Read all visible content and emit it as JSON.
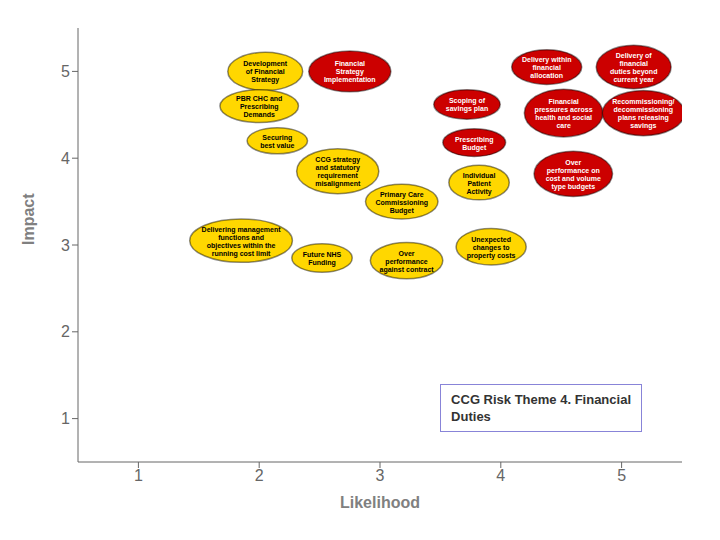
{
  "chart_data": {
    "type": "bubble",
    "title": "CCG Risk Theme 4. Financial\nDuties",
    "xlabel": "Likelihood",
    "ylabel": "Impact",
    "xlim": [
      0.5,
      5.5
    ],
    "ylim": [
      0.5,
      5.5
    ],
    "xticks": [
      1,
      2,
      3,
      4,
      5
    ],
    "yticks": [
      1,
      2,
      3,
      4,
      5
    ],
    "grid": false,
    "points": [
      {
        "x": 2.05,
        "y": 5.0,
        "label": "Development\nof Financial\nStrategy",
        "color": "#FFD700",
        "width": 0.62,
        "height": 0.44
      },
      {
        "x": 2.0,
        "y": 4.6,
        "label": "PBR CHC and\nPrescribing\nDemands",
        "color": "#FFD700",
        "width": 0.65,
        "height": 0.38
      },
      {
        "x": 2.15,
        "y": 4.2,
        "label": "Securing\nbest value",
        "color": "#FFD700",
        "width": 0.5,
        "height": 0.3
      },
      {
        "x": 2.75,
        "y": 5.0,
        "label": "Financial\nStrategy\nImplementation",
        "color": "#CC0000",
        "width": 0.68,
        "height": 0.47
      },
      {
        "x": 2.65,
        "y": 3.85,
        "label": "CCG strategy\nand statutory\nrequirement\nmisalignment",
        "color": "#FFD700",
        "width": 0.68,
        "height": 0.52
      },
      {
        "x": 1.85,
        "y": 3.05,
        "label": "Delivering management\nfunctions and\nobjectives within the\nrunning cost limit",
        "color": "#FFD700",
        "width": 0.85,
        "height": 0.5
      },
      {
        "x": 2.52,
        "y": 2.85,
        "label": "Future NHS\nFunding",
        "color": "#FFD700",
        "width": 0.5,
        "height": 0.33
      },
      {
        "x": 3.18,
        "y": 3.5,
        "label": "Primary Care\nCommissioning\nBudget",
        "color": "#FFD700",
        "width": 0.6,
        "height": 0.4
      },
      {
        "x": 3.22,
        "y": 2.82,
        "label": "Over\nperformance\nagainst contract",
        "color": "#FFD700",
        "width": 0.6,
        "height": 0.42
      },
      {
        "x": 3.72,
        "y": 4.62,
        "label": "Scoping of\nsavings plan",
        "color": "#CC0000",
        "width": 0.55,
        "height": 0.34
      },
      {
        "x": 3.78,
        "y": 4.18,
        "label": "Prescribing\nBudget",
        "color": "#CC0000",
        "width": 0.52,
        "height": 0.32
      },
      {
        "x": 3.82,
        "y": 3.72,
        "label": "Individual\nPatient\nActivity",
        "color": "#FFD700",
        "width": 0.5,
        "height": 0.4
      },
      {
        "x": 3.92,
        "y": 2.98,
        "label": "Unexpected\nchanges to\nproperty costs",
        "color": "#FFD700",
        "width": 0.58,
        "height": 0.42
      },
      {
        "x": 4.38,
        "y": 5.05,
        "label": "Delivery within\nfinancial\nallocation",
        "color": "#CC0000",
        "width": 0.58,
        "height": 0.4
      },
      {
        "x": 4.52,
        "y": 4.52,
        "label": "Financial\npressures across\nhealth and social\ncare",
        "color": "#CC0000",
        "width": 0.65,
        "height": 0.55
      },
      {
        "x": 4.6,
        "y": 3.82,
        "label": "Over\nperformance on\ncost and volume\ntype budgets",
        "color": "#CC0000",
        "width": 0.65,
        "height": 0.52
      },
      {
        "x": 5.1,
        "y": 5.05,
        "label": "Delivery of\nfinancial\nduties beyond\ncurrent year",
        "color": "#CC0000",
        "width": 0.62,
        "height": 0.5
      },
      {
        "x": 5.18,
        "y": 4.52,
        "label": "Recommissioning/\ndecommissioning\nplans releasing\nsavings",
        "color": "#CC0000",
        "width": 0.68,
        "height": 0.52
      }
    ]
  }
}
